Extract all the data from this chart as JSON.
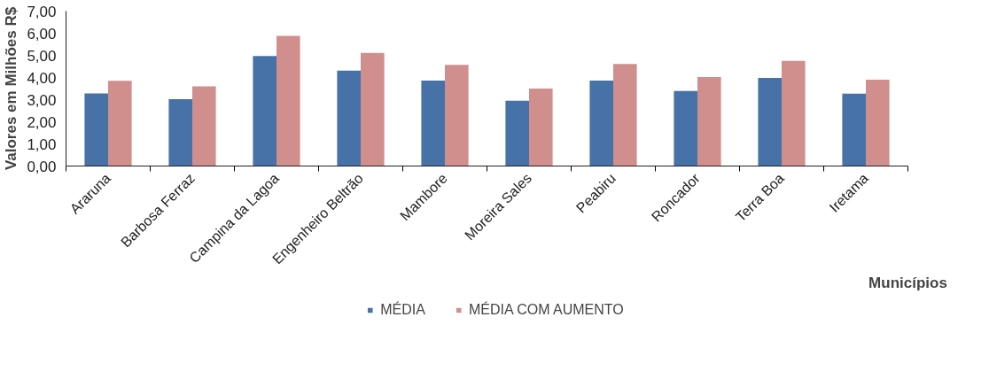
{
  "chart_data": {
    "type": "bar",
    "xlabel": "Municípios",
    "ylabel": "Valores em Milhões R$",
    "categories": [
      "Araruna",
      "Barbosa Ferraz",
      "Campina da Lagoa",
      "Engenheiro Beltrão",
      "Mambore",
      "Moreira Sales",
      "Peabiru",
      "Roncador",
      "Terra Boa",
      "Iretama"
    ],
    "series": [
      {
        "name": "MÉDIA",
        "color": "#4672a8",
        "values": [
          3.28,
          3.02,
          4.97,
          4.31,
          3.86,
          2.95,
          3.86,
          3.39,
          3.98,
          3.27
        ]
      },
      {
        "name": "MÉDIA COM AUMENTO",
        "color": "#d08e8d",
        "values": [
          3.85,
          3.6,
          5.88,
          5.11,
          4.57,
          3.5,
          4.61,
          4.02,
          4.75,
          3.9
        ]
      }
    ],
    "ylim": [
      0,
      7
    ],
    "yticks": [
      {
        "value": 0,
        "label": "0,00"
      },
      {
        "value": 1,
        "label": "1,00"
      },
      {
        "value": 2,
        "label": "2,00"
      },
      {
        "value": 3,
        "label": "3,00"
      },
      {
        "value": 4,
        "label": "4,00"
      },
      {
        "value": 5,
        "label": "5,00"
      },
      {
        "value": 6,
        "label": "6,00"
      },
      {
        "value": 7,
        "label": "7,00"
      }
    ],
    "grid": false,
    "legend": "bottom"
  }
}
